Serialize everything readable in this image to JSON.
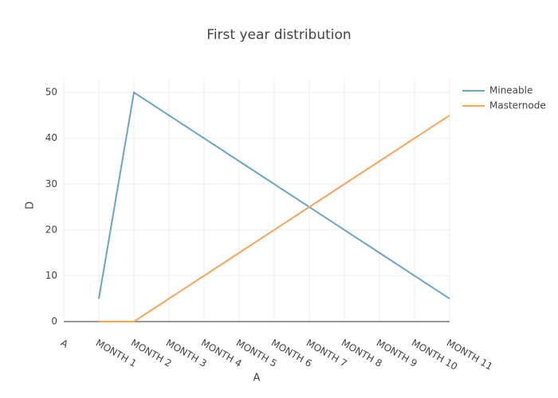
{
  "chart_data": {
    "type": "line",
    "title": "First year distribution",
    "x_label": "A",
    "y_label": "D",
    "categories": [
      "A",
      "MONTH 1",
      "MONTH 2",
      "MONTH 3",
      "MONTH 4",
      "MONTH 5",
      "MONTH 6",
      "MONTH 7",
      "MONTH 8",
      "MONTH 9",
      "MONTH 10",
      "MONTH 11"
    ],
    "series": [
      {
        "name": "Mineable",
        "color": "#6aa5c8",
        "values": [
          null,
          5,
          50,
          45,
          40,
          35,
          30,
          25,
          20,
          15,
          10,
          5
        ]
      },
      {
        "name": "Masternode",
        "color": "#f5a55c",
        "values": [
          null,
          0,
          0,
          5,
          10,
          15,
          20,
          25,
          30,
          35,
          40,
          45
        ]
      }
    ],
    "ylim": [
      0,
      52.8
    ],
    "yticks": [
      0,
      10,
      20,
      30,
      40,
      50
    ],
    "grid": true,
    "legend": "top-right"
  }
}
